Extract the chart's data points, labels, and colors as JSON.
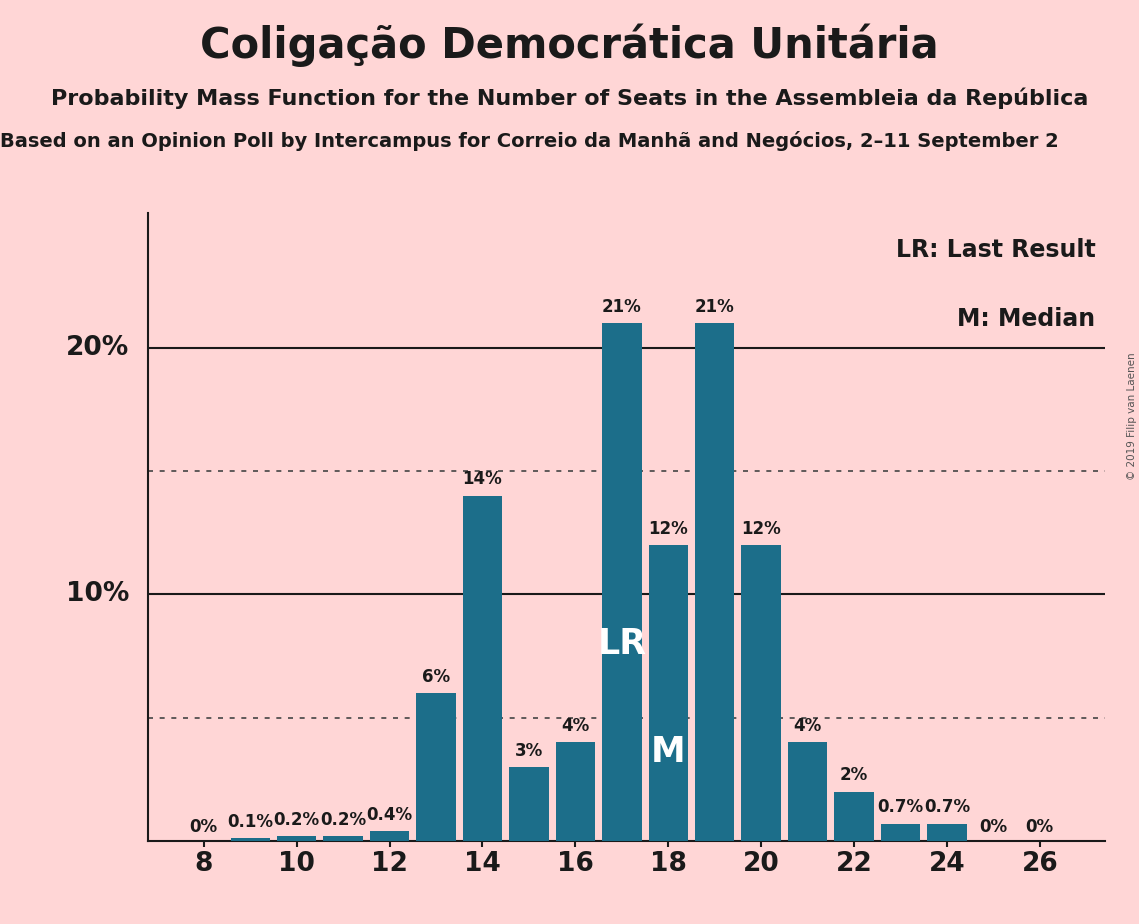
{
  "title": "Coligação Democrática Unitária",
  "subtitle": "Probability Mass Function for the Number of Seats in the Assembleia da República",
  "subtitle2": "Based on an Opinion Poll by Intercampus for Correio da Manhã and Negócios, 2–11 September 2",
  "copyright": "© 2019 Filip van Laenen",
  "background_color": "#ffd6d6",
  "bar_color": "#1c6e8a",
  "seats": [
    8,
    9,
    10,
    11,
    12,
    13,
    14,
    15,
    16,
    17,
    18,
    19,
    20,
    21,
    22,
    23,
    24,
    25,
    26
  ],
  "probabilities": [
    0.0,
    0.001,
    0.002,
    0.002,
    0.004,
    0.06,
    0.14,
    0.03,
    0.04,
    0.21,
    0.12,
    0.21,
    0.12,
    0.04,
    0.02,
    0.007,
    0.007,
    0.0,
    0.0
  ],
  "labels": [
    "0%",
    "0.1%",
    "0.2%",
    "0.2%",
    "0.4%",
    "6%",
    "14%",
    "3%",
    "4%",
    "21%",
    "12%",
    "21%",
    "12%",
    "4%",
    "2%",
    "0.7%",
    "0.7%",
    "0%",
    "0%"
  ],
  "xticks": [
    8,
    10,
    12,
    14,
    16,
    18,
    20,
    22,
    24,
    26
  ],
  "ylim": [
    0,
    0.255
  ],
  "LR_seat": 17,
  "M_seat": 18,
  "LR_label": "LR",
  "M_label": "M",
  "legend_LR": "LR: Last Result",
  "legend_M": "M: Median",
  "dotted_lines": [
    0.05,
    0.15
  ],
  "solid_lines": [
    0.1,
    0.2
  ],
  "title_fontsize": 30,
  "subtitle_fontsize": 16,
  "subtitle2_fontsize": 14,
  "bar_label_fontsize": 12,
  "axis_label_fontsize": 19,
  "legend_fontsize": 17,
  "LR_M_fontsize": 25,
  "ylabel_10": "10%",
  "ylabel_20": "20%"
}
